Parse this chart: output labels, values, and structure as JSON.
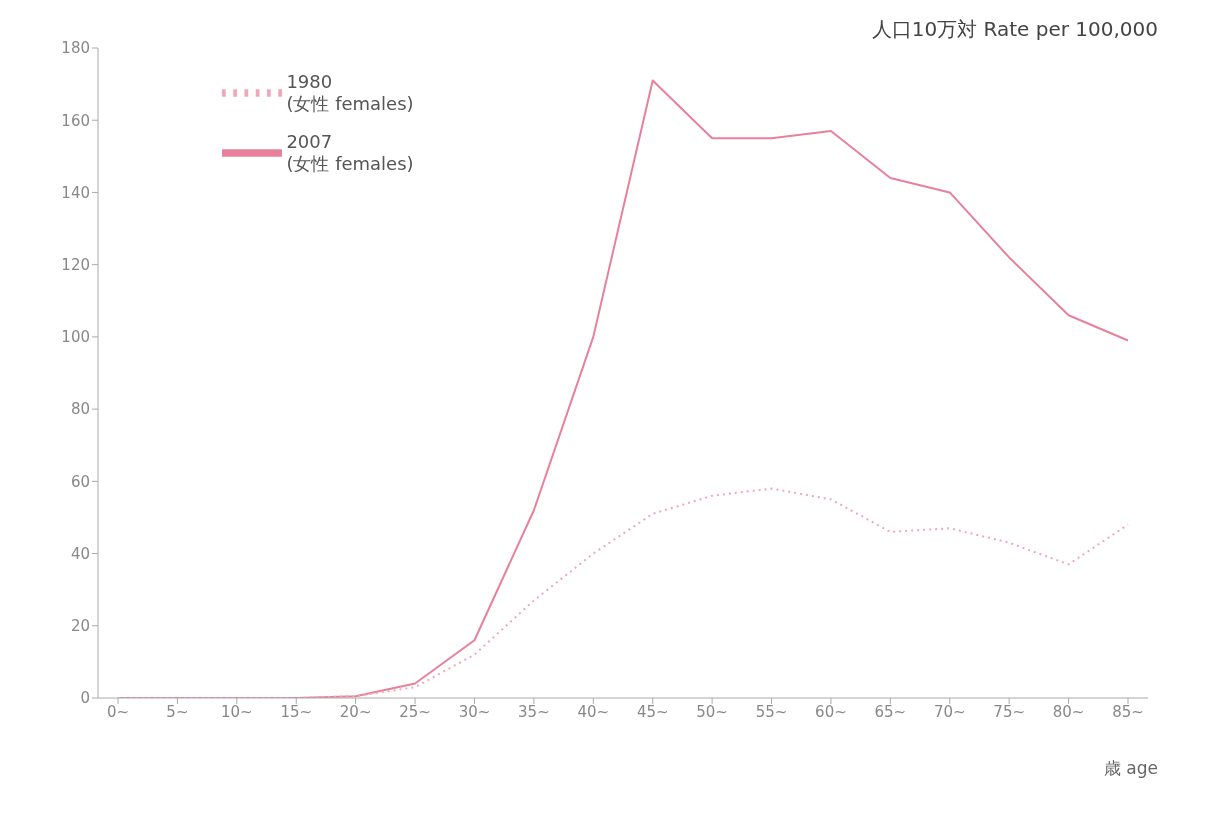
{
  "chart_data": {
    "type": "line",
    "ylabel": "人口10万対  Rate per 100,000",
    "xlabel": "歳 age",
    "categories": [
      "0~",
      "5~",
      "10~",
      "15~",
      "20~",
      "25~",
      "30~",
      "35~",
      "40~",
      "45~",
      "50~",
      "55~",
      "60~",
      "65~",
      "70~",
      "75~",
      "80~",
      "85~"
    ],
    "series": [
      {
        "name": "1980\n(女性 females)",
        "color": "#f2a6b8",
        "line_style": "dotted",
        "values": [
          0,
          0,
          0,
          0,
          0.5,
          3,
          12,
          27,
          40,
          51,
          56,
          58,
          55,
          46,
          47,
          43,
          37,
          48
        ]
      },
      {
        "name": "2007\n(女性 females)",
        "color": "#e8809c",
        "line_style": "solid",
        "values": [
          0,
          0,
          0,
          0,
          0.5,
          4,
          16,
          52,
          100,
          171,
          155,
          155,
          157,
          144,
          140,
          122,
          106,
          99
        ]
      }
    ],
    "ylim": [
      0,
      180
    ],
    "yticks": [
      0,
      20,
      40,
      60,
      80,
      100,
      120,
      140,
      160,
      180
    ],
    "grid": false,
    "legend": "top left",
    "marker": "none"
  }
}
